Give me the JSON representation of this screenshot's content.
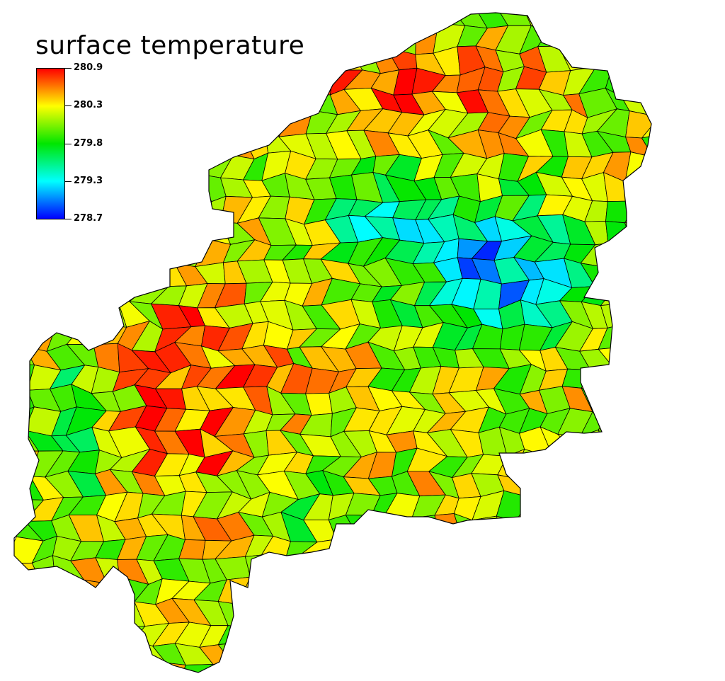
{
  "legend": {
    "title": "surface temperature",
    "min": 278.7,
    "max": 280.9,
    "ticks": [
      "280.9",
      "280.3",
      "279.8",
      "279.3",
      "278.7"
    ],
    "colormap": [
      "#0000ff",
      "#00ffff",
      "#00e600",
      "#ffff00",
      "#ff0000"
    ]
  },
  "map": {
    "region": "gridded polygon mesh of surface temperature",
    "outline_color": "#000000",
    "background": "#ffffff"
  }
}
